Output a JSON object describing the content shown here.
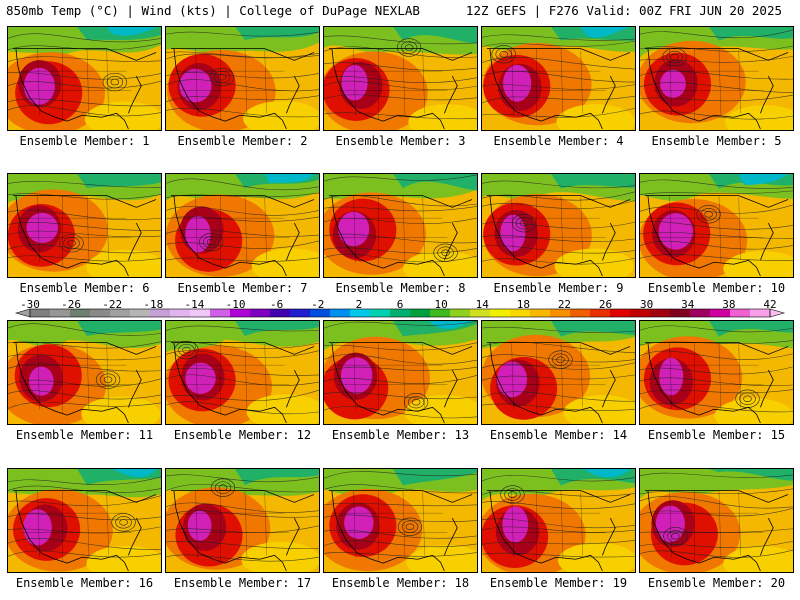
{
  "header": {
    "title": "850mb Temp (°C) | Wind (kts) | College of DuPage NEXLAB",
    "run_info": "12Z GEFS | F276 Valid: 00Z FRI JUN 20 2025"
  },
  "members": [
    {
      "label": "Ensemble Member: 1"
    },
    {
      "label": "Ensemble Member: 2"
    },
    {
      "label": "Ensemble Member: 3"
    },
    {
      "label": "Ensemble Member: 4"
    },
    {
      "label": "Ensemble Member: 5"
    },
    {
      "label": "Ensemble Member: 6"
    },
    {
      "label": "Ensemble Member: 7"
    },
    {
      "label": "Ensemble Member: 8"
    },
    {
      "label": "Ensemble Member: 9"
    },
    {
      "label": "Ensemble Member: 10"
    },
    {
      "label": "Ensemble Member: 11"
    },
    {
      "label": "Ensemble Member: 12"
    },
    {
      "label": "Ensemble Member: 13"
    },
    {
      "label": "Ensemble Member: 14"
    },
    {
      "label": "Ensemble Member: 15"
    },
    {
      "label": "Ensemble Member: 16"
    },
    {
      "label": "Ensemble Member: 17"
    },
    {
      "label": "Ensemble Member: 18"
    },
    {
      "label": "Ensemble Member: 19"
    },
    {
      "label": "Ensemble Member: 20"
    }
  ],
  "colorbar": {
    "labels": [
      "-30",
      "-26",
      "-22",
      "-18",
      "-14",
      "-10",
      "-6",
      "-2",
      "2",
      "6",
      "10",
      "14",
      "18",
      "22",
      "26",
      "30",
      "34",
      "38",
      "42"
    ],
    "min": -30,
    "max": 42,
    "step": 2,
    "colors": [
      "#7f7f7f",
      "#969696",
      "#6f7f6f",
      "#8a8a8a",
      "#a0a0a0",
      "#b6b6b6",
      "#c8a0d8",
      "#e2b4f0",
      "#f0c8f8",
      "#d060e8",
      "#b000d8",
      "#8000c0",
      "#4000b0",
      "#2020d0",
      "#0050e0",
      "#0090f0",
      "#00c8e8",
      "#00d0b0",
      "#00b070",
      "#00a040",
      "#40b820",
      "#90d020",
      "#d0e020",
      "#f0f000",
      "#f8d800",
      "#f8b800",
      "#f89000",
      "#f06000",
      "#e83000",
      "#e00000",
      "#c00000",
      "#a00010",
      "#800020",
      "#a00060",
      "#d000a0",
      "#f060d0",
      "#f8a0e8"
    ]
  }
}
